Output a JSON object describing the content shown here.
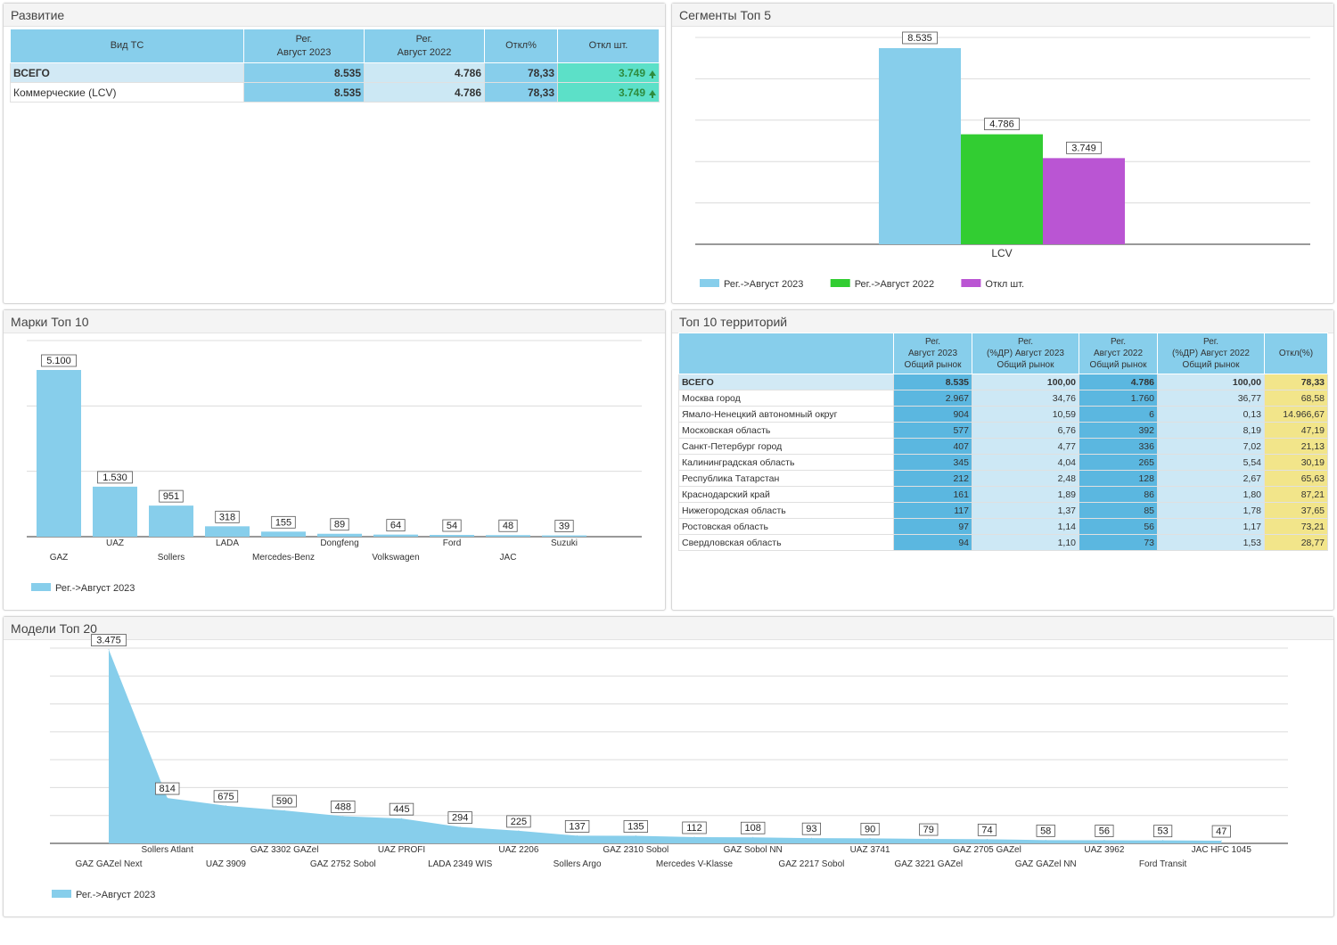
{
  "panels": {
    "development": {
      "title": "Развитие",
      "headers": [
        "Вид ТС",
        "Рег.\nАвгуст 2023",
        "Рег.\nАвгуст 2022",
        "Откл%",
        "Откл шт."
      ],
      "rows": [
        {
          "name": "ВСЕГО",
          "v2023": "8.535",
          "v2022": "4.786",
          "pct": "78,33",
          "diff": "3.749"
        },
        {
          "name": "Коммерческие (LCV)",
          "v2023": "8.535",
          "v2022": "4.786",
          "pct": "78,33",
          "diff": "3.749"
        }
      ]
    },
    "segments": {
      "title": "Сегменты Топ 5"
    },
    "brands": {
      "title": "Марки Топ 10"
    },
    "territories": {
      "title": "Топ 10 территорий",
      "headers": [
        "",
        "Рег.\nАвгуст 2023\nОбщий рынок",
        "Рег.\n(%ДР) Август 2023\nОбщий рынок",
        "Рег.\nАвгуст 2022\nОбщий рынок",
        "Рег.\n(%ДР) Август 2022\nОбщий рынок",
        "Откл(%)"
      ],
      "rows": [
        [
          "ВСЕГО",
          "8.535",
          "100,00",
          "4.786",
          "100,00",
          "78,33"
        ],
        [
          "Москва город",
          "2.967",
          "34,76",
          "1.760",
          "36,77",
          "68,58"
        ],
        [
          "Ямало-Ненецкий автономный округ",
          "904",
          "10,59",
          "6",
          "0,13",
          "14.966,67"
        ],
        [
          "Московская область",
          "577",
          "6,76",
          "392",
          "8,19",
          "47,19"
        ],
        [
          "Санкт-Петербург город",
          "407",
          "4,77",
          "336",
          "7,02",
          "21,13"
        ],
        [
          "Калининградская область",
          "345",
          "4,04",
          "265",
          "5,54",
          "30,19"
        ],
        [
          "Республика Татарстан",
          "212",
          "2,48",
          "128",
          "2,67",
          "65,63"
        ],
        [
          "Краснодарский край",
          "161",
          "1,89",
          "86",
          "1,80",
          "87,21"
        ],
        [
          "Нижегородская область",
          "117",
          "1,37",
          "85",
          "1,78",
          "37,65"
        ],
        [
          "Ростовская область",
          "97",
          "1,14",
          "56",
          "1,17",
          "73,21"
        ],
        [
          "Свердловская область",
          "94",
          "1,10",
          "73",
          "1,53",
          "28,77"
        ]
      ]
    },
    "models": {
      "title": "Модели Топ 20"
    }
  },
  "chart_data": [
    {
      "id": "segments",
      "type": "bar",
      "categories": [
        "LCV"
      ],
      "series": [
        {
          "name": "Рег.->Август 2023",
          "values": [
            8535
          ],
          "labels": [
            "8.535"
          ],
          "color": "#87ceeb"
        },
        {
          "name": "Рег.->Август 2022",
          "values": [
            4786
          ],
          "labels": [
            "4.786"
          ],
          "color": "#32cd32"
        },
        {
          "name": "Откл шт.",
          "values": [
            3749
          ],
          "labels": [
            "3.749"
          ],
          "color": "#ba55d3"
        }
      ],
      "ylim": [
        0,
        9000
      ],
      "grid": true,
      "legend": "bottom-left"
    },
    {
      "id": "brands",
      "type": "bar",
      "categories": [
        "GAZ",
        "UAZ",
        "Sollers",
        "LADA",
        "Mercedes-Benz",
        "Dongfeng",
        "Volkswagen",
        "Ford",
        "JAC",
        "Suzuki"
      ],
      "series": [
        {
          "name": "Рег.->Август 2023",
          "values": [
            5100,
            1530,
            951,
            318,
            155,
            89,
            64,
            54,
            48,
            39
          ],
          "labels": [
            "5.100",
            "1.530",
            "951",
            "318",
            "155",
            "89",
            "64",
            "54",
            "48",
            "39"
          ],
          "color": "#87ceeb"
        }
      ],
      "ylim": [
        0,
        6000
      ],
      "grid": true,
      "legend": "bottom-left"
    },
    {
      "id": "models",
      "type": "area",
      "categories": [
        "GAZ GAZel Next",
        "Sollers Atlant",
        "UAZ 3909",
        "GAZ 3302 GAZel",
        "GAZ 2752 Sobol",
        "UAZ PROFI",
        "LADA 2349 WIS",
        "UAZ 2206",
        "Sollers Argo",
        "GAZ 2310 Sobol",
        "Mercedes V-Klasse",
        "GAZ Sobol NN",
        "GAZ 2217 Sobol",
        "UAZ 3741",
        "GAZ 3221 GAZel",
        "GAZ 2705 GAZel",
        "GAZ GAZel NN",
        "UAZ 3962",
        "Ford Transit",
        "JAC HFC 1045"
      ],
      "series": [
        {
          "name": "Рег.->Август 2023",
          "values": [
            3475,
            814,
            675,
            590,
            488,
            445,
            294,
            225,
            137,
            135,
            112,
            108,
            93,
            90,
            79,
            74,
            58,
            56,
            53,
            47
          ],
          "labels": [
            "3.475",
            "814",
            "675",
            "590",
            "488",
            "445",
            "294",
            "225",
            "137",
            "135",
            "112",
            "108",
            "93",
            "90",
            "79",
            "74",
            "58",
            "56",
            "53",
            "47"
          ],
          "color": "#87ceeb"
        }
      ],
      "ylim": [
        0,
        3500
      ],
      "grid": true,
      "legend": "bottom-left"
    }
  ]
}
